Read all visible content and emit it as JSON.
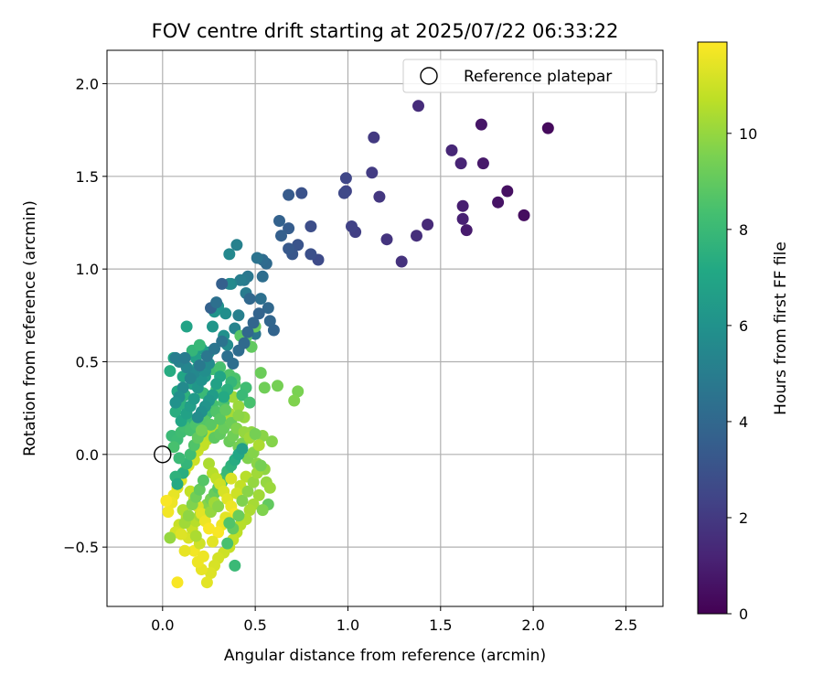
{
  "chart_data": {
    "type": "scatter",
    "title": "FOV centre drift starting at 2025/07/22 06:33:22",
    "xlabel": "Angular distance from reference (arcmin)",
    "ylabel": "Rotation from reference (arcmin)",
    "xlim": [
      -0.3,
      2.7
    ],
    "ylim": [
      -0.82,
      2.18
    ],
    "xticks": [
      0.0,
      0.5,
      1.0,
      1.5,
      2.0,
      2.5
    ],
    "xtick_labels": [
      "0.0",
      "0.5",
      "1.0",
      "1.5",
      "2.0",
      "2.5"
    ],
    "yticks": [
      -0.5,
      0.0,
      0.5,
      1.0,
      1.5,
      2.0
    ],
    "ytick_labels": [
      "−0.5",
      "0.0",
      "0.5",
      "1.0",
      "1.5",
      "2.0"
    ],
    "grid": true,
    "legend": {
      "position": "top-right",
      "entries": [
        "Reference platepar"
      ]
    },
    "colorbar": {
      "label": "Hours from first FF file",
      "colormap": "viridis",
      "range": [
        0,
        11.9
      ],
      "ticks": [
        0,
        2,
        4,
        6,
        8,
        10
      ],
      "tick_labels": [
        "0",
        "2",
        "4",
        "6",
        "8",
        "10"
      ]
    },
    "reference_point": {
      "x": 0.0,
      "y": 0.0
    },
    "points": [
      [
        2.08,
        1.76,
        0.3
      ],
      [
        1.95,
        1.29,
        0.4
      ],
      [
        1.86,
        1.42,
        0.5
      ],
      [
        1.81,
        1.36,
        0.6
      ],
      [
        1.72,
        1.78,
        0.7
      ],
      [
        1.73,
        1.57,
        0.8
      ],
      [
        1.64,
        1.21,
        0.9
      ],
      [
        1.62,
        1.34,
        1.0
      ],
      [
        1.62,
        1.27,
        1.1
      ],
      [
        1.61,
        1.57,
        1.2
      ],
      [
        1.56,
        1.64,
        1.3
      ],
      [
        1.43,
        1.24,
        1.4
      ],
      [
        1.38,
        1.88,
        1.5
      ],
      [
        1.37,
        1.18,
        1.6
      ],
      [
        1.29,
        1.04,
        1.7
      ],
      [
        1.21,
        1.16,
        1.8
      ],
      [
        1.17,
        1.39,
        1.9
      ],
      [
        1.14,
        1.71,
        2.0
      ],
      [
        1.13,
        1.52,
        2.1
      ],
      [
        1.04,
        1.2,
        2.2
      ],
      [
        1.02,
        1.23,
        2.3
      ],
      [
        0.99,
        1.42,
        2.4
      ],
      [
        0.99,
        1.49,
        2.5
      ],
      [
        0.98,
        1.41,
        2.6
      ],
      [
        0.84,
        1.05,
        2.7
      ],
      [
        0.8,
        1.23,
        2.8
      ],
      [
        0.8,
        1.08,
        2.9
      ],
      [
        0.75,
        1.41,
        3.0
      ],
      [
        0.73,
        1.13,
        3.1
      ],
      [
        0.7,
        1.08,
        3.2
      ],
      [
        0.68,
        1.11,
        3.3
      ],
      [
        0.68,
        1.4,
        3.4
      ],
      [
        0.68,
        1.22,
        3.5
      ],
      [
        0.64,
        1.18,
        3.6
      ],
      [
        0.63,
        1.26,
        3.7
      ],
      [
        0.6,
        0.67,
        3.8
      ],
      [
        0.58,
        0.72,
        3.9
      ],
      [
        0.57,
        0.79,
        4.0
      ],
      [
        0.56,
        1.03,
        4.1
      ],
      [
        0.54,
        1.05,
        4.2
      ],
      [
        0.54,
        0.96,
        4.3
      ],
      [
        0.53,
        0.84,
        4.4
      ],
      [
        0.51,
        1.06,
        4.5
      ],
      [
        0.5,
        0.65,
        4.6
      ],
      [
        0.46,
        0.96,
        4.7
      ],
      [
        0.44,
        0.94,
        4.8
      ],
      [
        0.45,
        0.87,
        4.9
      ],
      [
        0.42,
        0.94,
        5.0
      ],
      [
        0.41,
        0.75,
        5.1
      ],
      [
        0.4,
        1.13,
        5.2
      ],
      [
        0.39,
        0.68,
        5.3
      ],
      [
        0.37,
        0.92,
        5.4
      ],
      [
        0.36,
        1.08,
        5.5
      ],
      [
        0.36,
        0.92,
        5.6
      ],
      [
        0.35,
        0.59,
        5.7
      ],
      [
        0.34,
        0.76,
        5.8
      ],
      [
        0.33,
        0.64,
        5.9
      ],
      [
        0.3,
        0.8,
        6.0
      ],
      [
        0.28,
        0.77,
        6.1
      ],
      [
        0.27,
        0.69,
        6.2
      ],
      [
        0.25,
        0.55,
        6.3
      ],
      [
        0.23,
        0.42,
        6.4
      ],
      [
        0.21,
        0.57,
        6.5
      ],
      [
        0.19,
        0.47,
        6.6
      ],
      [
        0.18,
        0.52,
        6.7
      ],
      [
        0.16,
        0.38,
        6.8
      ],
      [
        0.13,
        0.69,
        6.9
      ],
      [
        0.11,
        0.42,
        7.0
      ],
      [
        0.08,
        0.34,
        7.1
      ],
      [
        0.06,
        0.52,
        7.2
      ],
      [
        0.04,
        0.45,
        7.3
      ],
      [
        0.07,
        0.23,
        7.4
      ],
      [
        0.1,
        0.27,
        7.5
      ],
      [
        0.12,
        0.32,
        7.6
      ],
      [
        0.14,
        0.19,
        7.7
      ],
      [
        0.16,
        0.56,
        7.8
      ],
      [
        0.2,
        0.59,
        7.9
      ],
      [
        0.22,
        0.33,
        8.0
      ],
      [
        0.24,
        0.22,
        8.1
      ],
      [
        0.27,
        0.46,
        8.2
      ],
      [
        0.29,
        0.35,
        8.3
      ],
      [
        0.31,
        0.47,
        8.4
      ],
      [
        0.33,
        0.28,
        8.5
      ],
      [
        0.36,
        0.43,
        8.6
      ],
      [
        0.39,
        0.38,
        8.7
      ],
      [
        0.42,
        0.64,
        8.8
      ],
      [
        0.45,
        0.63,
        8.9
      ],
      [
        0.48,
        0.58,
        9.0
      ],
      [
        0.5,
        0.69,
        9.1
      ],
      [
        0.53,
        0.44,
        9.2
      ],
      [
        0.55,
        0.36,
        9.3
      ],
      [
        0.62,
        0.37,
        9.4
      ],
      [
        0.73,
        0.34,
        9.5
      ],
      [
        0.71,
        0.29,
        9.6
      ],
      [
        0.59,
        0.07,
        9.7
      ],
      [
        0.54,
        0.1,
        9.8
      ],
      [
        0.48,
        0.12,
        9.9
      ],
      [
        0.44,
        0.2,
        10.0
      ],
      [
        0.41,
        0.26,
        10.1
      ],
      [
        0.38,
        0.31,
        10.2
      ],
      [
        0.36,
        0.22,
        10.3
      ],
      [
        0.33,
        0.18,
        10.4
      ],
      [
        0.3,
        0.15,
        10.5
      ],
      [
        0.27,
        0.12,
        10.6
      ],
      [
        0.24,
        0.08,
        10.7
      ],
      [
        0.22,
        0.05,
        10.8
      ],
      [
        0.19,
        0.02,
        10.9
      ],
      [
        0.17,
        -0.03,
        11.0
      ],
      [
        0.14,
        -0.06,
        11.1
      ],
      [
        0.12,
        -0.09,
        11.2
      ],
      [
        0.1,
        -0.14,
        11.3
      ],
      [
        0.08,
        -0.18,
        11.4
      ],
      [
        0.06,
        -0.22,
        11.5
      ],
      [
        0.05,
        -0.26,
        11.6
      ],
      [
        0.03,
        -0.31,
        11.7
      ],
      [
        0.02,
        -0.25,
        11.8
      ],
      [
        0.05,
        0.1,
        8.0
      ],
      [
        0.08,
        0.08,
        8.1
      ],
      [
        0.1,
        0.12,
        8.2
      ],
      [
        0.12,
        0.15,
        8.3
      ],
      [
        0.15,
        0.13,
        8.4
      ],
      [
        0.18,
        0.16,
        8.5
      ],
      [
        0.21,
        0.12,
        8.6
      ],
      [
        0.23,
        0.18,
        8.7
      ],
      [
        0.26,
        0.16,
        8.8
      ],
      [
        0.28,
        0.09,
        8.9
      ],
      [
        0.31,
        0.11,
        9.0
      ],
      [
        0.33,
        0.14,
        9.1
      ],
      [
        0.36,
        0.07,
        9.2
      ],
      [
        0.38,
        0.1,
        9.3
      ],
      [
        0.41,
        0.04,
        9.4
      ],
      [
        0.43,
        0.06,
        9.5
      ],
      [
        0.46,
        -0.02,
        9.6
      ],
      [
        0.49,
        0.01,
        9.7
      ],
      [
        0.51,
        -0.05,
        9.8
      ],
      [
        0.55,
        -0.08,
        9.9
      ],
      [
        0.56,
        -0.15,
        10.0
      ],
      [
        0.58,
        -0.18,
        10.1
      ],
      [
        0.52,
        -0.22,
        10.2
      ],
      [
        0.49,
        -0.27,
        10.3
      ],
      [
        0.47,
        -0.3,
        10.4
      ],
      [
        0.45,
        -0.35,
        10.5
      ],
      [
        0.42,
        -0.38,
        10.6
      ],
      [
        0.4,
        -0.42,
        10.7
      ],
      [
        0.38,
        -0.46,
        10.8
      ],
      [
        0.36,
        -0.5,
        10.9
      ],
      [
        0.33,
        -0.53,
        11.0
      ],
      [
        0.3,
        -0.56,
        11.1
      ],
      [
        0.28,
        -0.6,
        11.2
      ],
      [
        0.26,
        -0.64,
        11.3
      ],
      [
        0.24,
        -0.69,
        11.4
      ],
      [
        0.21,
        -0.62,
        11.5
      ],
      [
        0.19,
        -0.58,
        11.6
      ],
      [
        0.17,
        -0.52,
        11.7
      ],
      [
        0.08,
        -0.69,
        11.8
      ],
      [
        0.12,
        -0.52,
        11.5
      ],
      [
        0.14,
        -0.45,
        11.2
      ],
      [
        0.16,
        -0.4,
        10.9
      ],
      [
        0.18,
        -0.36,
        10.6
      ],
      [
        0.2,
        -0.33,
        10.3
      ],
      [
        0.22,
        -0.3,
        10.0
      ],
      [
        0.24,
        -0.27,
        9.7
      ],
      [
        0.26,
        -0.24,
        9.4
      ],
      [
        0.28,
        -0.21,
        9.1
      ],
      [
        0.3,
        -0.18,
        8.8
      ],
      [
        0.32,
        -0.15,
        8.5
      ],
      [
        0.34,
        -0.12,
        8.2
      ],
      [
        0.35,
        -0.09,
        7.9
      ],
      [
        0.37,
        -0.06,
        7.6
      ],
      [
        0.39,
        -0.03,
        7.3
      ],
      [
        0.41,
        0.0,
        7.0
      ],
      [
        0.43,
        0.03,
        6.7
      ],
      [
        0.25,
        -0.05,
        10.4
      ],
      [
        0.27,
        -0.1,
        10.6
      ],
      [
        0.29,
        -0.13,
        10.8
      ],
      [
        0.31,
        -0.16,
        11.0
      ],
      [
        0.33,
        -0.2,
        11.2
      ],
      [
        0.35,
        -0.24,
        11.4
      ],
      [
        0.37,
        -0.28,
        11.6
      ],
      [
        0.39,
        -0.32,
        11.8
      ],
      [
        0.15,
        -0.2,
        10.8
      ],
      [
        0.17,
        -0.24,
        11.0
      ],
      [
        0.19,
        -0.28,
        11.2
      ],
      [
        0.21,
        -0.32,
        11.4
      ],
      [
        0.23,
        -0.36,
        11.6
      ],
      [
        0.25,
        -0.4,
        11.8
      ],
      [
        0.11,
        -0.3,
        10.5
      ],
      [
        0.13,
        -0.34,
        10.7
      ],
      [
        0.09,
        -0.38,
        10.9
      ],
      [
        0.07,
        -0.42,
        11.1
      ],
      [
        0.04,
        -0.45,
        10.0
      ],
      [
        0.1,
        -0.43,
        11.3
      ],
      [
        0.12,
        -0.37,
        10.2
      ],
      [
        0.14,
        -0.33,
        9.9
      ],
      [
        0.16,
        -0.27,
        9.6
      ],
      [
        0.18,
        -0.23,
        9.3
      ],
      [
        0.2,
        -0.19,
        9.0
      ],
      [
        0.22,
        -0.14,
        8.7
      ],
      [
        0.11,
        -0.1,
        7.4
      ],
      [
        0.13,
        -0.05,
        7.8
      ],
      [
        0.15,
        0.0,
        8.2
      ],
      [
        0.17,
        0.05,
        8.6
      ],
      [
        0.19,
        0.09,
        9.0
      ],
      [
        0.21,
        0.13,
        9.4
      ],
      [
        0.07,
        -0.12,
        7.6
      ],
      [
        0.09,
        -0.02,
        8.0
      ],
      [
        0.06,
        0.04,
        8.4
      ],
      [
        0.08,
        -0.16,
        7.2
      ],
      [
        0.1,
        0.18,
        7.0
      ],
      [
        0.13,
        0.22,
        6.8
      ],
      [
        0.15,
        0.26,
        6.6
      ],
      [
        0.17,
        0.3,
        6.4
      ],
      [
        0.19,
        0.36,
        6.2
      ],
      [
        0.21,
        0.4,
        6.0
      ],
      [
        0.23,
        0.45,
        5.8
      ],
      [
        0.25,
        0.49,
        5.6
      ],
      [
        0.27,
        0.27,
        8.4
      ],
      [
        0.29,
        0.23,
        8.6
      ],
      [
        0.31,
        0.19,
        8.8
      ],
      [
        0.34,
        0.24,
        9.0
      ],
      [
        0.37,
        0.17,
        9.2
      ],
      [
        0.4,
        0.14,
        9.6
      ],
      [
        0.44,
        0.12,
        10.0
      ],
      [
        0.47,
        0.09,
        10.2
      ],
      [
        0.5,
        0.11,
        9.4
      ],
      [
        0.52,
        0.05,
        10.4
      ],
      [
        0.45,
        -0.12,
        10.6
      ],
      [
        0.42,
        -0.17,
        10.8
      ],
      [
        0.4,
        -0.21,
        11.0
      ],
      [
        0.37,
        -0.13,
        11.2
      ],
      [
        0.34,
        -0.34,
        11.4
      ],
      [
        0.32,
        -0.38,
        11.6
      ],
      [
        0.3,
        -0.42,
        11.8
      ],
      [
        0.27,
        -0.47,
        11.4
      ],
      [
        0.22,
        -0.55,
        11.6
      ],
      [
        0.2,
        -0.48,
        11.0
      ],
      [
        0.18,
        -0.44,
        10.4
      ],
      [
        0.26,
        -0.31,
        10.0
      ],
      [
        0.28,
        -0.26,
        10.2
      ],
      [
        0.3,
        -0.28,
        9.8
      ],
      [
        0.43,
        -0.25,
        9.6
      ],
      [
        0.46,
        -0.2,
        9.8
      ],
      [
        0.49,
        -0.15,
        10.0
      ],
      [
        0.51,
        -0.1,
        10.2
      ],
      [
        0.53,
        -0.06,
        9.4
      ],
      [
        0.38,
        -0.4,
        9.0
      ],
      [
        0.36,
        -0.37,
        8.6
      ],
      [
        0.41,
        -0.33,
        9.2
      ],
      [
        0.39,
        -0.6,
        8.0
      ],
      [
        0.35,
        -0.48,
        8.4
      ],
      [
        0.57,
        -0.27,
        9.0
      ],
      [
        0.54,
        -0.3,
        9.6
      ],
      [
        0.45,
        0.36,
        8.2
      ],
      [
        0.43,
        0.32,
        8.0
      ],
      [
        0.47,
        0.28,
        8.4
      ],
      [
        0.41,
        0.21,
        9.8
      ],
      [
        0.39,
        0.41,
        8.5
      ],
      [
        0.37,
        0.39,
        7.8
      ],
      [
        0.35,
        0.35,
        7.5
      ],
      [
        0.33,
        0.31,
        7.2
      ],
      [
        0.31,
        0.42,
        7.0
      ],
      [
        0.29,
        0.38,
        6.8
      ],
      [
        0.27,
        0.32,
        6.5
      ],
      [
        0.25,
        0.29,
        6.3
      ],
      [
        0.23,
        0.26,
        6.1
      ],
      [
        0.21,
        0.23,
        5.9
      ],
      [
        0.19,
        0.2,
        5.7
      ],
      [
        0.17,
        0.44,
        5.5
      ],
      [
        0.15,
        0.41,
        5.3
      ],
      [
        0.13,
        0.47,
        5.4
      ],
      [
        0.11,
        0.36,
        5.6
      ],
      [
        0.09,
        0.31,
        5.8
      ],
      [
        0.07,
        0.28,
        6.0
      ],
      [
        0.09,
        0.5,
        5.2
      ],
      [
        0.07,
        0.52,
        5.0
      ],
      [
        0.12,
        0.52,
        4.9
      ],
      [
        0.2,
        0.48,
        4.8
      ],
      [
        0.24,
        0.53,
        4.7
      ],
      [
        0.28,
        0.57,
        4.6
      ],
      [
        0.32,
        0.61,
        4.5
      ],
      [
        0.35,
        0.53,
        4.4
      ],
      [
        0.38,
        0.49,
        4.3
      ],
      [
        0.41,
        0.56,
        4.2
      ],
      [
        0.44,
        0.6,
        4.1
      ],
      [
        0.46,
        0.66,
        4.0
      ],
      [
        0.49,
        0.71,
        3.9
      ],
      [
        0.52,
        0.76,
        3.8
      ],
      [
        0.26,
        0.79,
        3.7
      ],
      [
        0.32,
        0.92,
        3.6
      ],
      [
        0.47,
        0.84,
        4.0
      ],
      [
        0.29,
        0.82,
        4.4
      ]
    ]
  }
}
